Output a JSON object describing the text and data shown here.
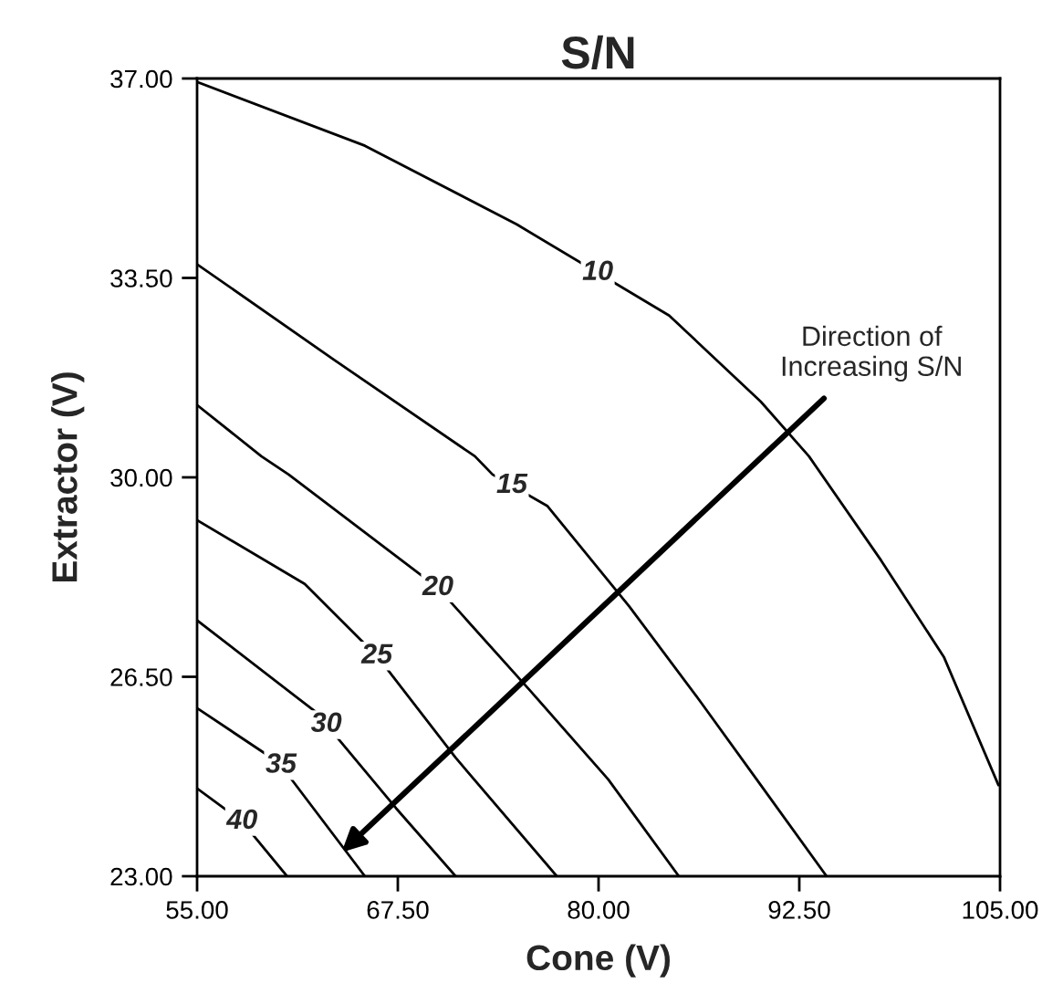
{
  "chart_data": {
    "type": "line",
    "title": "S/N",
    "xlabel": "Cone (V)",
    "ylabel": "Extractor (V)",
    "xlim": [
      55,
      105
    ],
    "ylim": [
      23,
      37
    ],
    "xticks": [
      {
        "value": 55,
        "label": "55.00"
      },
      {
        "value": 67.5,
        "label": "67.50"
      },
      {
        "value": 80,
        "label": "80.00"
      },
      {
        "value": 92.5,
        "label": "92.50"
      },
      {
        "value": 105,
        "label": "105.00"
      }
    ],
    "yticks": [
      {
        "value": 23,
        "label": "23.00"
      },
      {
        "value": 26.5,
        "label": "26.50"
      },
      {
        "value": 30,
        "label": "30.00"
      },
      {
        "value": 33.5,
        "label": "33.50"
      },
      {
        "value": 37,
        "label": "37.00"
      }
    ],
    "grid": false,
    "legend": false,
    "marker": "none",
    "line_style": "solid",
    "series": [
      {
        "name": "10",
        "color": "#000000",
        "x": [
          55,
          65.45,
          74.9,
          84.4,
          90.1,
          93.1,
          97.6,
          101.5,
          104.9
        ],
        "values": [
          36.94,
          35.82,
          34.44,
          32.84,
          31.33,
          30.37,
          28.54,
          26.85,
          24.6
        ]
      },
      {
        "name": "15",
        "color": "#000000",
        "x": [
          55,
          63.5,
          72.3,
          73.4,
          76.8,
          81.9,
          86.25,
          90.1,
          94.2
        ],
        "values": [
          33.74,
          32.07,
          30.37,
          30.05,
          29.5,
          27.74,
          26.1,
          24.6,
          23
        ]
      },
      {
        "name": "20",
        "color": "#000000",
        "x": [
          55,
          59,
          60.7,
          70,
          75.7,
          80.6,
          85
        ],
        "values": [
          31.27,
          30.37,
          30.05,
          28.06,
          26.27,
          24.7,
          23
        ]
      },
      {
        "name": "25",
        "color": "#000000",
        "x": [
          55,
          61.7,
          66.25,
          71.1,
          77.4
        ],
        "values": [
          29.25,
          28.13,
          26.85,
          25.08,
          23
        ]
      },
      {
        "name": "30",
        "color": "#000000",
        "x": [
          55,
          62.4,
          67.4,
          71.1
        ],
        "values": [
          27.49,
          25.88,
          24.19,
          23
        ]
      },
      {
        "name": "35",
        "color": "#000000",
        "x": [
          55,
          60.1,
          65.45
        ],
        "values": [
          25.95,
          24.99,
          23
        ]
      },
      {
        "name": "40",
        "color": "#000000",
        "x": [
          55,
          57.8,
          60.6
        ],
        "values": [
          24.54,
          23.96,
          23
        ]
      }
    ],
    "annotations": [
      "Direction of\nIncreasing S/N"
    ]
  }
}
